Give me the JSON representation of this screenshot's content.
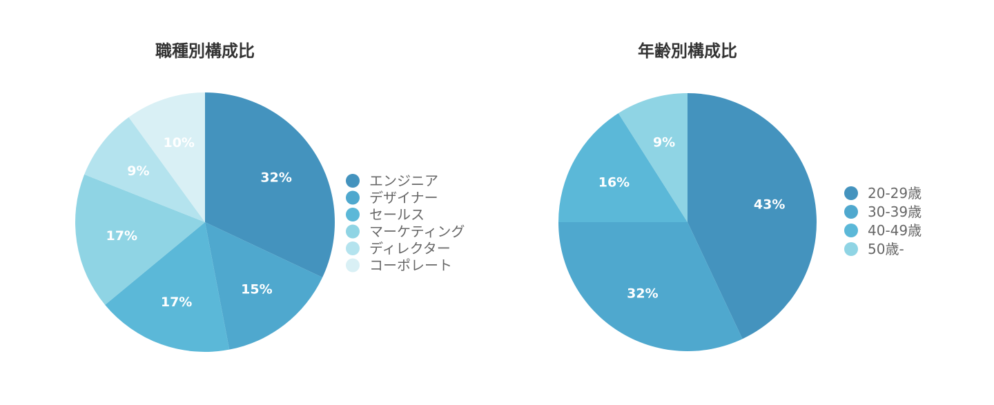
{
  "chart_data": [
    {
      "type": "pie",
      "title": "職種別構成比",
      "legend_position": "right",
      "categories": [
        "エンジニア",
        "デザイナー",
        "セールス",
        "マーケティング",
        "ディレクター",
        "コーポレート"
      ],
      "values": [
        32,
        15,
        17,
        17,
        9,
        10
      ],
      "labels": [
        "32%",
        "15%",
        "17%",
        "17%",
        "9%",
        "10%"
      ],
      "colors": [
        "#4493be",
        "#4fa8ce",
        "#5bb8d8",
        "#8fd4e4",
        "#b4e3ee",
        "#d9f0f5"
      ]
    },
    {
      "type": "pie",
      "title": "年齢別構成比",
      "legend_position": "right",
      "categories": [
        "20-29歳",
        "30-39歳",
        "40-49歳",
        "50歳-"
      ],
      "values": [
        43,
        32,
        16,
        9
      ],
      "labels": [
        "43%",
        "32%",
        "16%",
        "9%"
      ],
      "colors": [
        "#4493be",
        "#4fa8ce",
        "#5bb8d8",
        "#8fd4e4"
      ]
    }
  ]
}
